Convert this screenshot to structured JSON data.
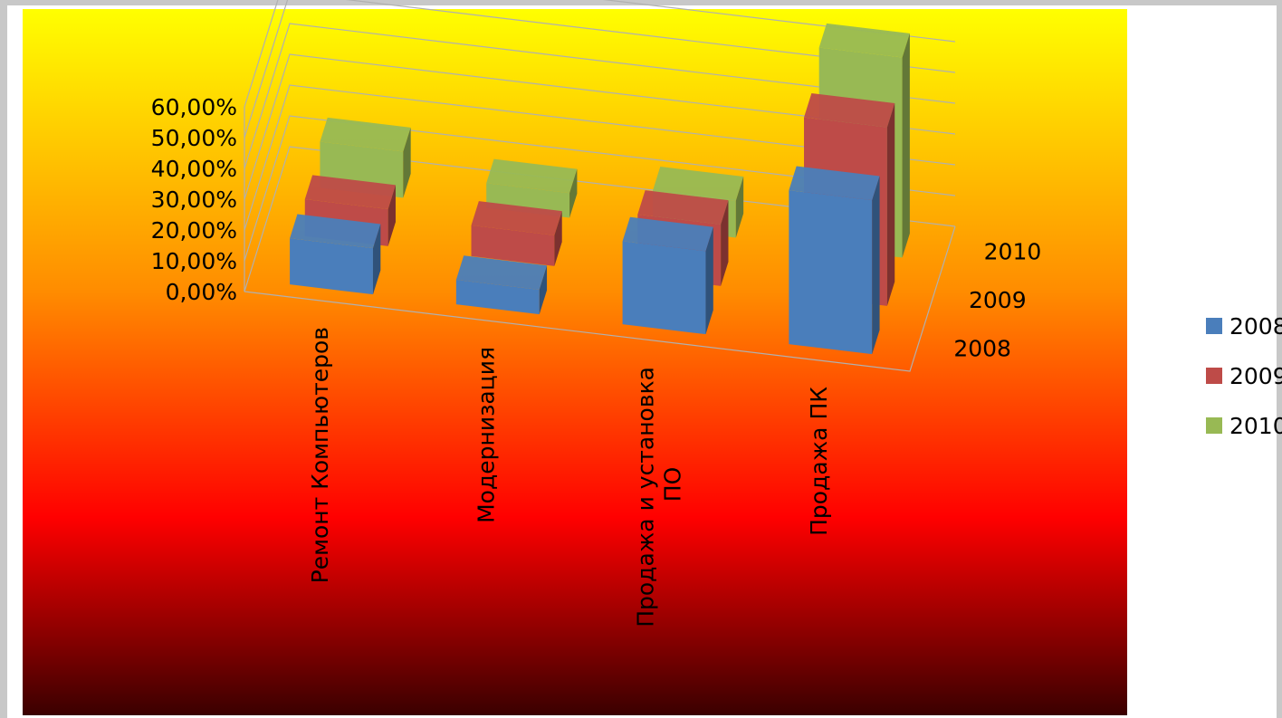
{
  "chart_data": {
    "type": "bar3d",
    "categories": [
      "Ремонт Компьютеров",
      "Модернизация",
      "Продажа и установка ПО",
      "Продажа ПК"
    ],
    "series": [
      {
        "name": "2008",
        "color": "#4a7ebb",
        "values": [
          15,
          8,
          27,
          50
        ]
      },
      {
        "name": "2009",
        "color": "#be4b48",
        "values": [
          12,
          10,
          20,
          58
        ]
      },
      {
        "name": "2010",
        "color": "#98b954",
        "values": [
          15,
          8,
          12,
          65
        ]
      }
    ],
    "ylim": [
      0,
      60
    ],
    "yticks": [
      {
        "value": 0,
        "label": "0,00%"
      },
      {
        "value": 10,
        "label": "10,00%"
      },
      {
        "value": 20,
        "label": "20,00%"
      },
      {
        "value": 30,
        "label": "30,00%"
      },
      {
        "value": 40,
        "label": "40,00%"
      },
      {
        "value": 50,
        "label": "50,00%"
      },
      {
        "value": 60,
        "label": "60,00%"
      }
    ],
    "grid": true
  }
}
